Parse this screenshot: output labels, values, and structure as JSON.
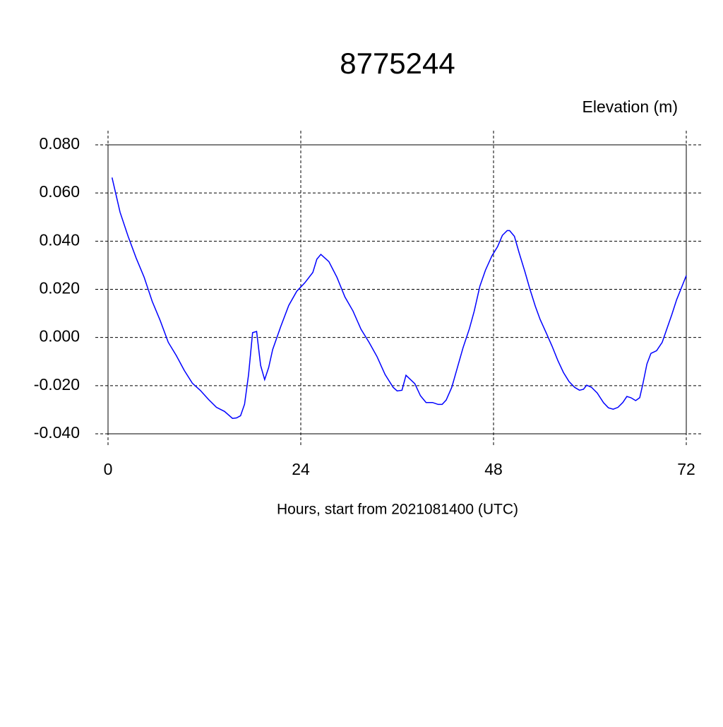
{
  "chart_data": {
    "type": "line",
    "title": "8775244",
    "subtitle": "Elevation (m)",
    "xlabel": "Hours, start from 2021081400 (UTC)",
    "xlim": [
      0,
      72
    ],
    "xticks": [
      0,
      24,
      48,
      72
    ],
    "ylim": [
      -0.04,
      0.08
    ],
    "yticks": [
      {
        "value": -0.04,
        "label": "-0.040"
      },
      {
        "value": -0.02,
        "label": "-0.020"
      },
      {
        "value": 0,
        "label": "0.000"
      },
      {
        "value": 0.02,
        "label": "0.020"
      },
      {
        "value": 0.04,
        "label": "0.040"
      },
      {
        "value": 0.06,
        "label": "0.060"
      },
      {
        "value": 0.08,
        "label": "0.080"
      }
    ],
    "grid": true,
    "series": [
      {
        "color": "#0000ff",
        "x": [
          0.5,
          1.5,
          2.5,
          3.5,
          4.5,
          5.5,
          6.5,
          7.5,
          8.5,
          9.5,
          10.5,
          11.5,
          12.5,
          13.5,
          14.5,
          15.5,
          16,
          16.5,
          17,
          17.5,
          18,
          18.5,
          19,
          19.5,
          20,
          20.5,
          21.5,
          22.5,
          23.5,
          24.5,
          25.5,
          26,
          26.5,
          27,
          27.5,
          28.5,
          29.5,
          30.5,
          31.5,
          32.5,
          33.5,
          34.5,
          35.5,
          36,
          36.6,
          37.1,
          38.2,
          38.9,
          39.6,
          40.4,
          41.1,
          41.6,
          42.1,
          42.8,
          43.5,
          44.2,
          45.0,
          45.6,
          46.3,
          47.0,
          47.8,
          48.5,
          49.1,
          49.7,
          50.0,
          50.6,
          51.2,
          51.9,
          52.5,
          53.2,
          53.8,
          54.6,
          55.3,
          56.0,
          56.7,
          57.4,
          58.1,
          58.7,
          59.2,
          59.6,
          60.2,
          60.9,
          61.7,
          62.3,
          62.9,
          63.5,
          64.1,
          64.6,
          65.1,
          65.7,
          66.2,
          66.6,
          67.1,
          67.6,
          68.3,
          69.0,
          69.5,
          70.2,
          70.8,
          71.4,
          72.0
        ],
        "values": [
          0.0664,
          0.052,
          0.042,
          0.033,
          0.025,
          0.015,
          0.007,
          -0.002,
          -0.0075,
          -0.0137,
          -0.019,
          -0.022,
          -0.0257,
          -0.029,
          -0.0307,
          -0.0336,
          -0.0334,
          -0.0325,
          -0.0277,
          -0.0154,
          0.002,
          0.0025,
          -0.0116,
          -0.0175,
          -0.0125,
          -0.005,
          0.0045,
          0.0133,
          0.0192,
          0.0227,
          0.027,
          0.0325,
          0.0345,
          0.033,
          0.0315,
          0.025,
          0.0168,
          0.011,
          0.0034,
          -0.002,
          -0.008,
          -0.0154,
          -0.0207,
          -0.0222,
          -0.0219,
          -0.0157,
          -0.0192,
          -0.0242,
          -0.027,
          -0.027,
          -0.0278,
          -0.0278,
          -0.026,
          -0.0207,
          -0.0125,
          -0.0043,
          0.0037,
          0.011,
          0.0213,
          0.028,
          0.0339,
          0.0377,
          0.0424,
          0.0444,
          0.0444,
          0.042,
          0.035,
          0.0274,
          0.0204,
          0.013,
          0.0075,
          0.0016,
          -0.0037,
          -0.0095,
          -0.0145,
          -0.0183,
          -0.0207,
          -0.0219,
          -0.0215,
          -0.0198,
          -0.0207,
          -0.023,
          -0.0271,
          -0.0292,
          -0.0298,
          -0.029,
          -0.027,
          -0.0245,
          -0.025,
          -0.0262,
          -0.025,
          -0.0192,
          -0.011,
          -0.0066,
          -0.0055,
          -0.002,
          0.0028,
          0.0095,
          0.0157,
          0.0207,
          0.0257
        ]
      }
    ]
  }
}
